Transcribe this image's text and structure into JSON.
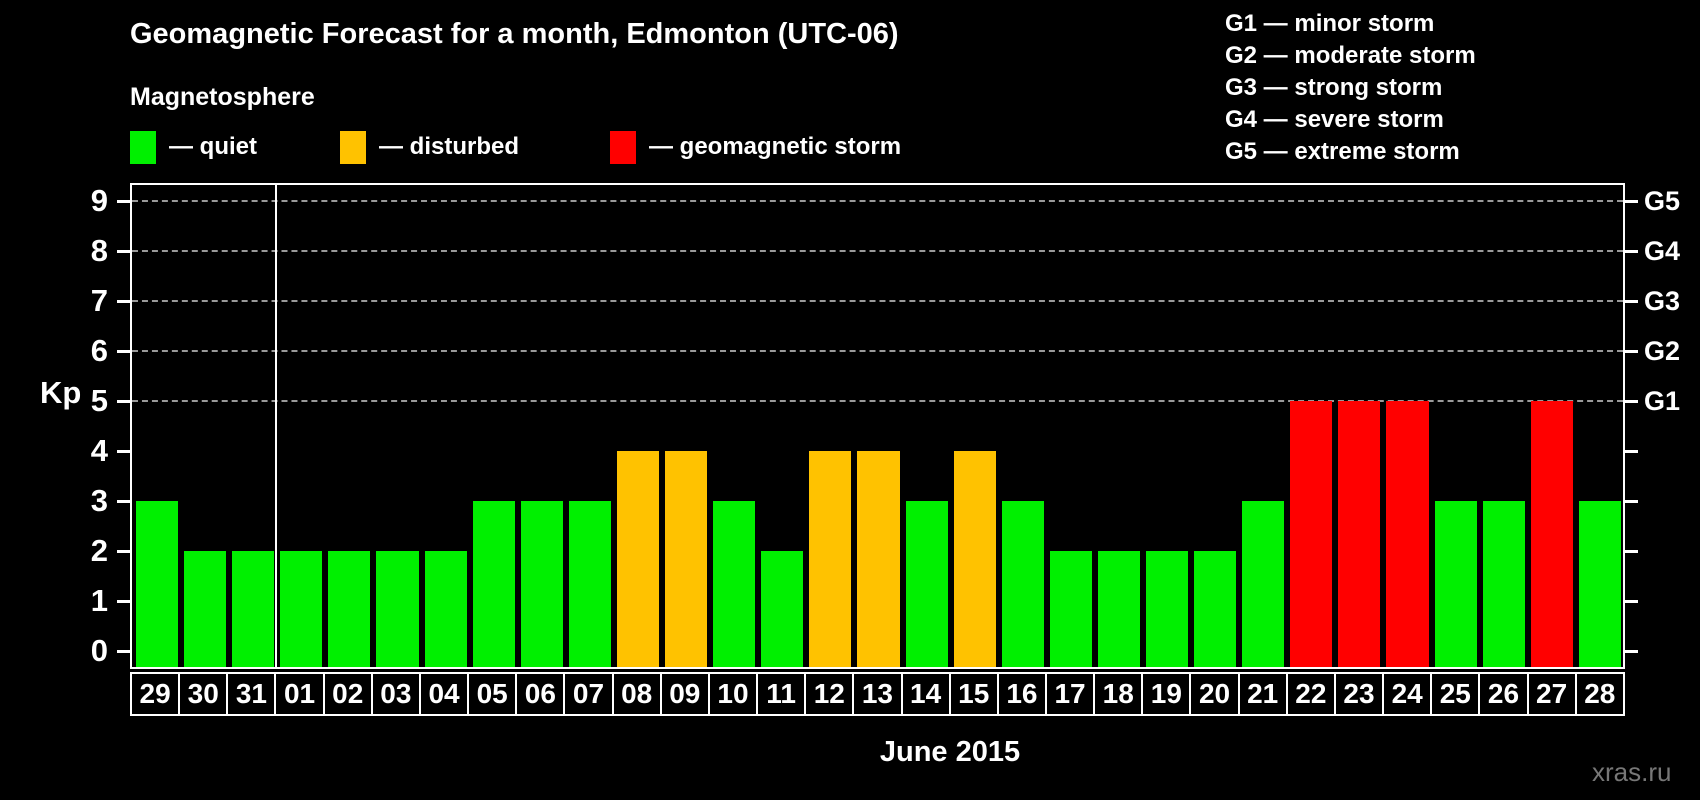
{
  "title": "Geomagnetic Forecast for a month, Edmonton (UTC-06)",
  "legend": {
    "title": "Magnetosphere",
    "items": [
      {
        "label": "— quiet",
        "status": "quiet",
        "color": "#00f000"
      },
      {
        "label": "— disturbed",
        "status": "disturbed",
        "color": "#ffc200"
      },
      {
        "label": "— geomagnetic storm",
        "status": "storm",
        "color": "#ff0000"
      }
    ]
  },
  "storm_scale": [
    "G1 — minor storm",
    "G2 — moderate storm",
    "G3 — strong storm",
    "G4 — severe storm",
    "G5 — extreme storm"
  ],
  "axis": {
    "y_label": "Kp",
    "y_ticks": [
      0,
      1,
      2,
      3,
      4,
      5,
      6,
      7,
      8,
      9
    ],
    "right_labels": [
      {
        "kp": 5,
        "label": "G1"
      },
      {
        "kp": 6,
        "label": "G2"
      },
      {
        "kp": 7,
        "label": "G3"
      },
      {
        "kp": 8,
        "label": "G4"
      },
      {
        "kp": 9,
        "label": "G5"
      }
    ],
    "gridlines_kp": [
      5,
      6,
      7,
      8,
      9
    ]
  },
  "xlabel": "June 2015",
  "watermark": "xras.ru",
  "chart_data": {
    "type": "bar",
    "title": "Geomagnetic Forecast for a month, Edmonton (UTC-06)",
    "categories": [
      "29",
      "30",
      "31",
      "01",
      "02",
      "03",
      "04",
      "05",
      "06",
      "07",
      "08",
      "09",
      "10",
      "11",
      "12",
      "13",
      "14",
      "15",
      "16",
      "17",
      "18",
      "19",
      "20",
      "21",
      "22",
      "23",
      "24",
      "25",
      "26",
      "27",
      "28"
    ],
    "values": [
      3,
      2,
      2,
      2,
      2,
      2,
      2,
      3,
      3,
      3,
      4,
      4,
      3,
      2,
      4,
      4,
      3,
      4,
      3,
      2,
      2,
      2,
      2,
      3,
      5,
      5,
      5,
      3,
      3,
      5,
      3
    ],
    "statuses": [
      "quiet",
      "quiet",
      "quiet",
      "quiet",
      "quiet",
      "quiet",
      "quiet",
      "quiet",
      "quiet",
      "quiet",
      "disturbed",
      "disturbed",
      "quiet",
      "quiet",
      "disturbed",
      "disturbed",
      "quiet",
      "disturbed",
      "quiet",
      "quiet",
      "quiet",
      "quiet",
      "quiet",
      "quiet",
      "storm",
      "storm",
      "storm",
      "quiet",
      "quiet",
      "storm",
      "quiet"
    ],
    "ylabel": "Kp",
    "xlabel": "June 2015",
    "ylim": [
      0,
      9
    ],
    "grid": "dashed horizontal at Kp 5-9 (G1-G5)",
    "month_separator_after_category": "31",
    "colors": {
      "quiet": "#00f000",
      "disturbed": "#ffc200",
      "storm": "#ff0000"
    }
  }
}
